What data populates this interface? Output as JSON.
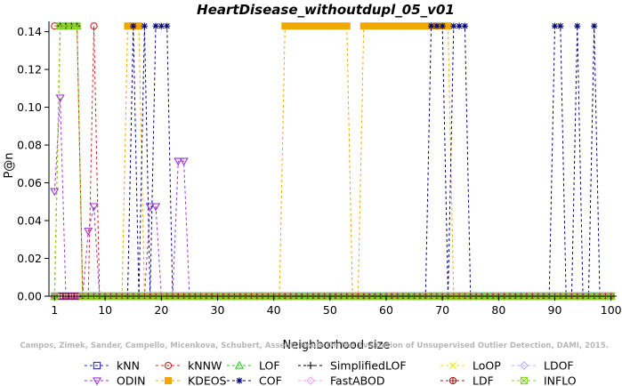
{
  "chart_data": {
    "type": "line",
    "title": "HeartDisease_withoutdupl_05_v01",
    "xlabel": "Neighborhood size",
    "ylabel": "P@n",
    "xlim": [
      0,
      101
    ],
    "ylim": [
      0,
      0.145
    ],
    "xticks": [
      1,
      10,
      20,
      30,
      40,
      50,
      60,
      70,
      80,
      90,
      100
    ],
    "xtick_labels": [
      "1",
      "10",
      "20",
      "30",
      "40",
      "50",
      "60",
      "70",
      "80",
      "90",
      "100"
    ],
    "yticks": [
      0.0,
      0.02,
      0.04,
      0.06,
      0.08,
      0.1,
      0.12,
      0.14
    ],
    "ytick_labels": [
      "0.00",
      "0.02",
      "0.04",
      "0.06",
      "0.08",
      "0.10",
      "0.12",
      "0.14"
    ],
    "grid": false,
    "legend_position": "bottom",
    "watermark": "Campos, Zimek, Sander, Campello, Micenkova, Schubert, Assent, Houle  On the Evaluation of Unsupervised Outlier Detection, DAMI, 2015.",
    "series": [
      {
        "name": "kNN",
        "color": "#2b2bd0",
        "marker": "square",
        "x": [
          1,
          100
        ],
        "y": [
          0,
          0
        ]
      },
      {
        "name": "kNNW",
        "color": "#d42020",
        "marker": "circle",
        "x": [
          1,
          2,
          3,
          4,
          5,
          6,
          7,
          8,
          9,
          10,
          100
        ],
        "y": [
          0.143,
          0.143,
          0.143,
          0.143,
          0.143,
          0,
          0,
          0.143,
          0,
          0,
          0
        ]
      },
      {
        "name": "LOF",
        "color": "#2ec82e",
        "marker": "triangle-up",
        "x": [
          1,
          2,
          3,
          4,
          5,
          6,
          7,
          100
        ],
        "y": [
          0,
          0.143,
          0.143,
          0.143,
          0.143,
          0,
          0,
          0
        ]
      },
      {
        "name": "SimplifiedLOF",
        "color": "#000000",
        "marker": "plus",
        "x": [
          1,
          2,
          3,
          4,
          5,
          6,
          7,
          100
        ],
        "y": [
          0,
          0.143,
          0.143,
          0.143,
          0.143,
          0,
          0,
          0
        ]
      },
      {
        "name": "LoOP",
        "color": "#e8e800",
        "marker": "x",
        "x": [
          1,
          2,
          3,
          4,
          5,
          6,
          7,
          100
        ],
        "y": [
          0,
          0.143,
          0.143,
          0.143,
          0.143,
          0,
          0,
          0
        ]
      },
      {
        "name": "LDOF",
        "color": "#b0b0ff",
        "marker": "diamond",
        "x": [
          1,
          100
        ],
        "y": [
          0,
          0
        ]
      },
      {
        "name": "ODIN",
        "color": "#9a30d8",
        "marker": "triangle-down",
        "x": [
          1,
          2,
          3,
          4,
          5,
          6,
          7,
          8,
          9,
          17,
          18,
          19,
          20,
          22,
          23,
          24,
          25,
          100
        ],
        "y": [
          0.0555,
          0.105,
          0,
          0,
          0,
          0,
          0.0345,
          0.0475,
          0,
          0,
          0.0475,
          0.0475,
          0,
          0,
          0.0715,
          0.0715,
          0,
          0
        ]
      },
      {
        "name": "KDEOS",
        "color": "#f0a800",
        "marker": "square-filled",
        "x": [
          13,
          14,
          15,
          16,
          17,
          41,
          42,
          43,
          44,
          45,
          46,
          47,
          48,
          49,
          50,
          51,
          52,
          53,
          54,
          55,
          56,
          57,
          58,
          59,
          60,
          61,
          62,
          63,
          64,
          65,
          66,
          67,
          68,
          69,
          70,
          71,
          72,
          73
        ],
        "y": [
          0,
          0.143,
          0.143,
          0.143,
          0,
          0,
          0.143,
          0.143,
          0.143,
          0.143,
          0.143,
          0.143,
          0.143,
          0.143,
          0.143,
          0.143,
          0.143,
          0.143,
          0,
          0,
          0.143,
          0.143,
          0.143,
          0.143,
          0.143,
          0.143,
          0.143,
          0.143,
          0.143,
          0.143,
          0.143,
          0.143,
          0.143,
          0.143,
          0.143,
          0.143,
          0,
          0
        ]
      },
      {
        "name": "COF",
        "color": "#00007a",
        "marker": "star",
        "x": [
          14,
          15,
          16,
          17,
          18,
          19,
          20,
          21,
          22,
          67,
          68,
          69,
          70,
          71,
          72,
          73,
          74,
          75,
          89,
          90,
          91,
          92,
          93,
          94,
          95,
          96,
          97,
          98
        ],
        "y": [
          0,
          0.143,
          0,
          0.143,
          0,
          0.143,
          0.143,
          0.143,
          0,
          0,
          0.143,
          0.143,
          0.143,
          0,
          0.143,
          0.143,
          0.143,
          0,
          0,
          0.143,
          0.143,
          0,
          0,
          0.143,
          0,
          0,
          0.143,
          0
        ]
      },
      {
        "name": "FastABOD",
        "color": "#ff9eff",
        "marker": "diamond",
        "x": [
          1,
          100
        ],
        "y": [
          0,
          0
        ]
      },
      {
        "name": "LDF",
        "color": "#9c1a1a",
        "marker": "circle-plus",
        "x": [
          1,
          100
        ],
        "y": [
          0,
          0
        ]
      },
      {
        "name": "INFLO",
        "color": "#8ad42a",
        "marker": "square-x",
        "x": [
          1,
          2,
          3,
          4,
          5,
          6,
          100
        ],
        "y": [
          0,
          0.143,
          0.143,
          0.143,
          0.143,
          0,
          0
        ]
      }
    ]
  }
}
